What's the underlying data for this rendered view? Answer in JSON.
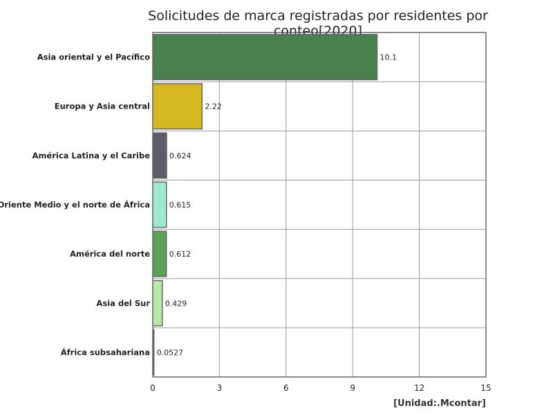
{
  "chart_data": {
    "type": "bar",
    "orientation": "horizontal",
    "title": "Solicitudes de marca registradas por residentes por conteo[2020]",
    "unit_label": "[Unidad:.Mcontar]",
    "categories": [
      "Asia oriental y el Pacífico",
      "Europa y Asia central",
      "América Latina y el Caribe",
      "Oriente Medio y el norte de África",
      "América del norte",
      "Asia del Sur",
      "África subsahariana"
    ],
    "values": [
      10.1,
      2.22,
      0.624,
      0.615,
      0.612,
      0.429,
      0.0527
    ],
    "value_labels": [
      "10.1",
      "2.22",
      "0.624",
      "0.615",
      "0.612",
      "0.429",
      "0.0527"
    ],
    "colors": [
      "#4a8050",
      "#d8b820",
      "#5e5c66",
      "#a0e8cc",
      "#5fa058",
      "#b8e8a8",
      "#5c5a64"
    ],
    "xlim": [
      0,
      15
    ],
    "xticks": [
      0,
      3,
      6,
      9,
      12,
      15
    ],
    "grid": true,
    "legend": "none"
  }
}
